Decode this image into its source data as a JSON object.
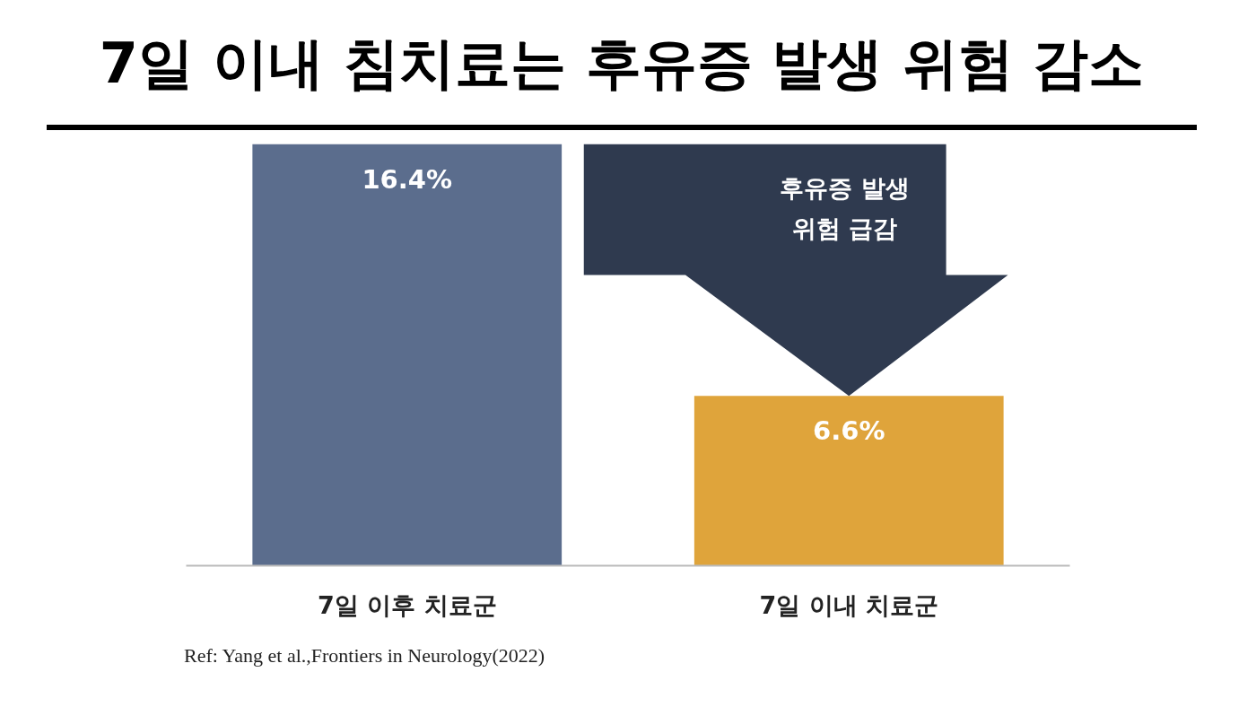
{
  "chart_data": {
    "type": "bar",
    "title": "7일 이내 침치료는 후유증 발생 위험 감소",
    "categories": [
      "7일 이후 치료군",
      "7일 이내 치료군"
    ],
    "values": [
      16.4,
      6.6
    ],
    "colors": [
      "#5b6d8d",
      "#dfa43b"
    ],
    "value_labels": [
      "16.4%",
      "6.6%"
    ],
    "annotations": [
      "후유증 발생\n위험 급감",
      "Ref: Yang et al.,Frontiers in Neurology(2022)"
    ]
  }
}
